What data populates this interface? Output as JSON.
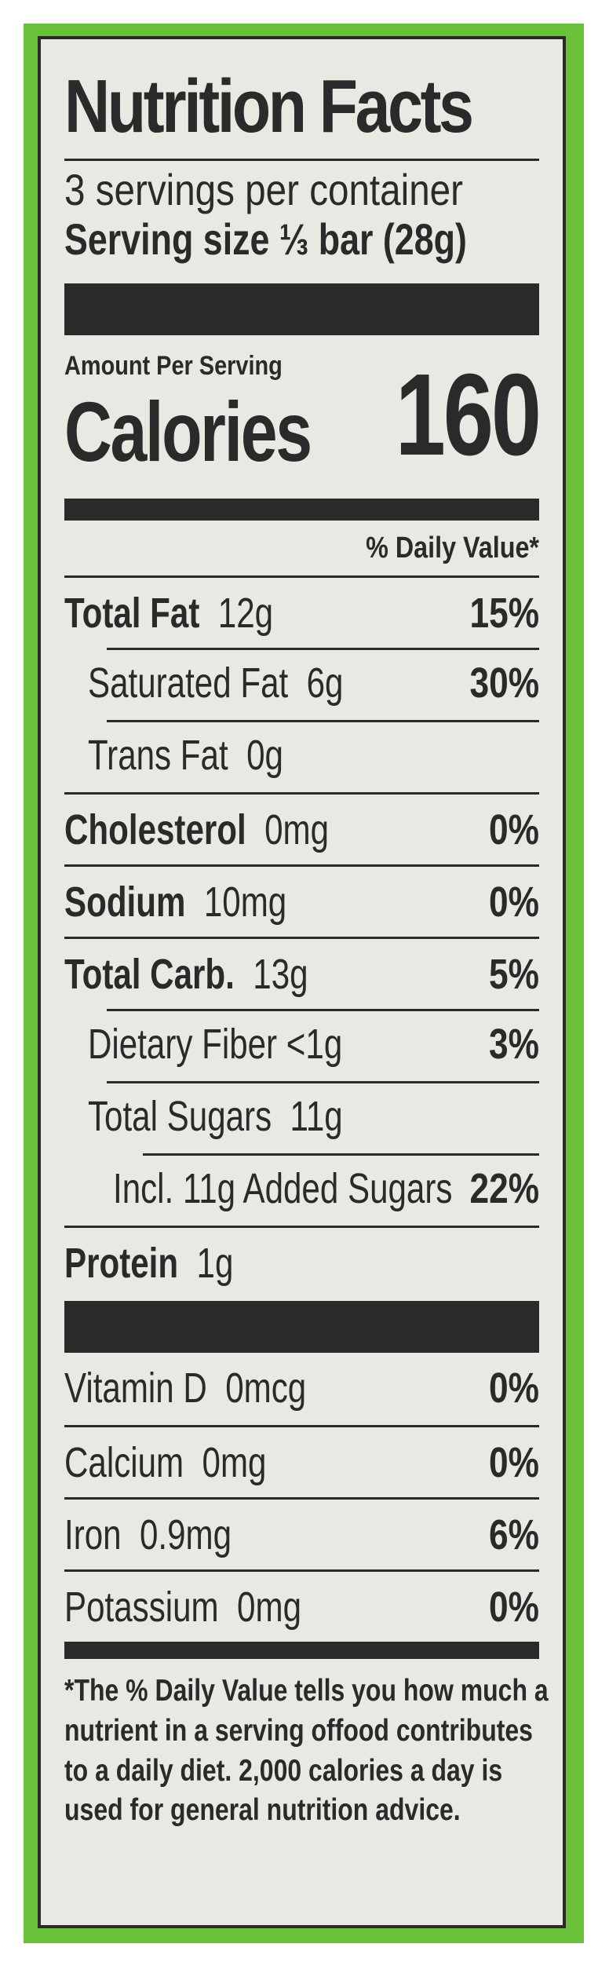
{
  "label": {
    "title": "Nutrition Facts",
    "servings_per_container": "3 servings per container",
    "serving_size": "Serving size ⅓ bar (28g)",
    "amount_per_serving": "Amount Per Serving",
    "calories_label": "Calories",
    "calories_value": "160",
    "daily_value_header": "% Daily Value*"
  },
  "nutrients": [
    {
      "name": "Total Fat",
      "amount": "12g",
      "dv": "15%"
    },
    {
      "name": "Saturated Fat",
      "amount": "6g",
      "dv": "30%"
    },
    {
      "name": "Trans Fat",
      "amount": "0g",
      "dv": ""
    },
    {
      "name": "Cholesterol",
      "amount": "0mg",
      "dv": "0%"
    },
    {
      "name": "Sodium",
      "amount": "10mg",
      "dv": "0%"
    },
    {
      "name": "Total Carb.",
      "amount": "13g",
      "dv": "5%"
    },
    {
      "name": "Dietary Fiber",
      "amount": "<1g",
      "dv": "3%"
    },
    {
      "name": "Total Sugars",
      "amount": "11g",
      "dv": ""
    },
    {
      "name": "Incl. 11g Added Sugars",
      "amount": "",
      "dv": "22%"
    },
    {
      "name": "Protein",
      "amount": "1g",
      "dv": ""
    }
  ],
  "vitamins": [
    {
      "name": "Vitamin D",
      "amount": "0mcg",
      "dv": "0%"
    },
    {
      "name": "Calcium",
      "amount": "0mg",
      "dv": "0%"
    },
    {
      "name": "Iron",
      "amount": "0.9mg",
      "dv": "6%"
    },
    {
      "name": "Potassium",
      "amount": "0mg",
      "dv": "0%"
    }
  ],
  "footnote": [
    "*The % Daily Value tells you how much a",
    "nutrient in a serving offood contributes",
    "to a daily diet. 2,000 calories a day is",
    "used for general nutrition advice."
  ],
  "colors": {
    "border_green": "#6ac23a",
    "panel": "#e9e8e2",
    "ink": "#2a2a2a"
  }
}
